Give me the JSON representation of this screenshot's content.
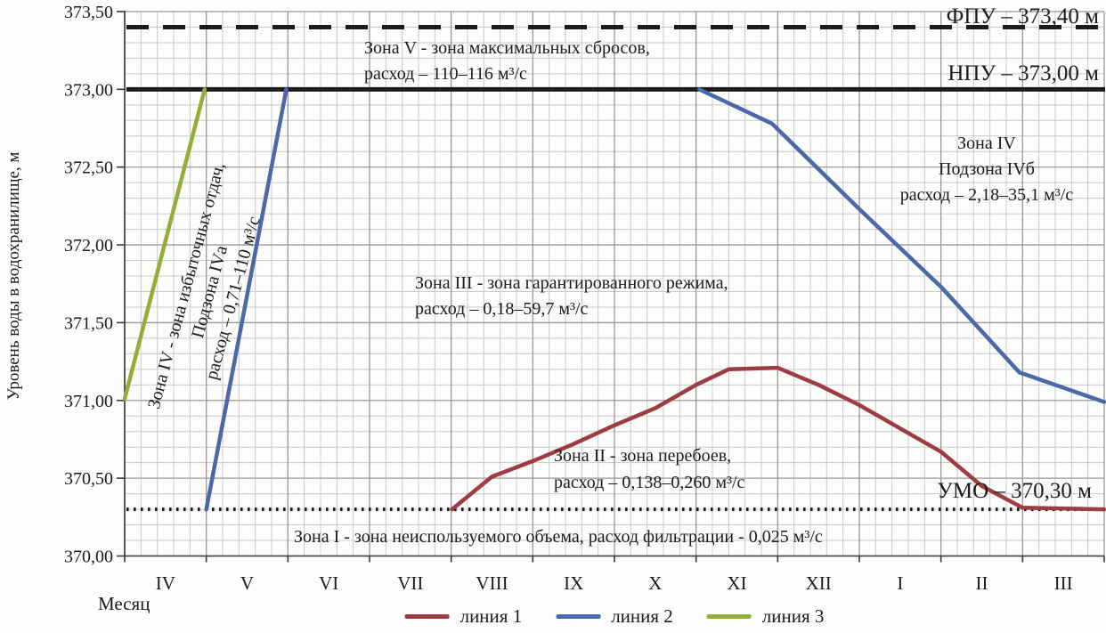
{
  "chart_data": {
    "type": "line",
    "title": "",
    "ylabel": "Уровень воды в водохранилище, м",
    "xlabel": "Месяц",
    "ylim": [
      370.0,
      373.5
    ],
    "y_ticks": [
      "373,50",
      "373,00",
      "372,50",
      "372,00",
      "371,50",
      "371,00",
      "370,50",
      "370,00"
    ],
    "y_tick_values": [
      373.5,
      373.0,
      372.5,
      372.0,
      371.5,
      371.0,
      370.5,
      370.0
    ],
    "x_categories": [
      "IV",
      "V",
      "VI",
      "VII",
      "VIII",
      "IX",
      "X",
      "XI",
      "XII",
      "I",
      "II",
      "III"
    ],
    "xlim_months": [
      0,
      12
    ],
    "grid": {
      "on": true,
      "minor_y_step_m": 0.1,
      "minor_x_per_month": 5,
      "major_y_step_m": 0.5,
      "major_x_step_month": 1
    },
    "legend_position": "bottom-center",
    "colors": {
      "grid_minor": "#c7cad0",
      "grid_major": "#999999",
      "axis": "#3a3a3a",
      "reference": "#1b1b1b",
      "text": "#1c1c1c",
      "background": "#fdfdfb"
    },
    "reference_lines": [
      {
        "id": "FPU",
        "value": 373.4,
        "style": "dashed",
        "label": "ФПУ – 373,40 м"
      },
      {
        "id": "NPU",
        "value": 373.0,
        "style": "solid",
        "label": "НПУ – 373,00 м"
      },
      {
        "id": "UMO",
        "value": 370.3,
        "style": "dotted",
        "label": "УМО – 370,30 м"
      }
    ],
    "series": [
      {
        "id": "line1",
        "name": "линия 1",
        "color": "#9e3c44",
        "segments": [
          [
            [
              4.01,
              370.3
            ],
            [
              4.5,
              370.51
            ],
            [
              5.0,
              370.61
            ],
            [
              5.5,
              370.72
            ],
            [
              6.0,
              370.84
            ],
            [
              6.5,
              370.95
            ],
            [
              7.0,
              371.1
            ],
            [
              7.4,
              371.2
            ],
            [
              8.0,
              371.21
            ],
            [
              8.5,
              371.1
            ],
            [
              9.0,
              370.97
            ],
            [
              9.5,
              370.82
            ],
            [
              10.0,
              370.67
            ],
            [
              10.5,
              370.45
            ],
            [
              11.0,
              370.31
            ],
            [
              12.0,
              370.3
            ]
          ]
        ]
      },
      {
        "id": "line2",
        "name": "линия 2",
        "color": "#4a69a8",
        "segments": [
          [
            [
              1.0,
              370.3
            ],
            [
              1.98,
              373.0
            ]
          ],
          [
            [
              7.04,
              373.0
            ],
            [
              7.93,
              372.78
            ],
            [
              9.0,
              372.23
            ],
            [
              10.0,
              371.73
            ],
            [
              10.96,
              371.18
            ],
            [
              12.0,
              370.99
            ]
          ]
        ]
      },
      {
        "id": "line3",
        "name": "линия 3",
        "color": "#93ad3a",
        "segments": [
          [
            [
              0.0,
              371.01
            ],
            [
              0.98,
              373.0
            ]
          ]
        ]
      }
    ],
    "annotations": [
      {
        "id": "zone5",
        "lines": [
          "Зона V - зона максимальных сбросов,",
          "расход – 110–116 м³/с"
        ]
      },
      {
        "id": "zone4b",
        "lines": [
          "Зона IV",
          "Подзона IVб",
          "расход – 2,18–35,1 м³/с"
        ]
      },
      {
        "id": "zone4a",
        "lines": [
          "Зона IV - зона избыточных отдач,",
          "Подзона IVа",
          "расход – 0,71–110 м³/с"
        ]
      },
      {
        "id": "zone3",
        "lines": [
          "Зона III - зона гарантированного режима,",
          "расход – 0,18–59,7 м³/с"
        ]
      },
      {
        "id": "zone2",
        "lines": [
          "Зона II - зона перебоев,",
          "расход – 0,138–0,260 м³/с"
        ]
      },
      {
        "id": "zone1",
        "lines": [
          "Зона I - зона неиспользуемого объема, расход фильтрации - 0,025 м³/с"
        ]
      }
    ]
  },
  "legend": {
    "items": [
      {
        "id": "line1",
        "label": "линия 1",
        "color": "#9e3c44"
      },
      {
        "id": "line2",
        "label": "линия 2",
        "color": "#4a69a8"
      },
      {
        "id": "line3",
        "label": "линия 3",
        "color": "#93ad3a"
      }
    ]
  }
}
